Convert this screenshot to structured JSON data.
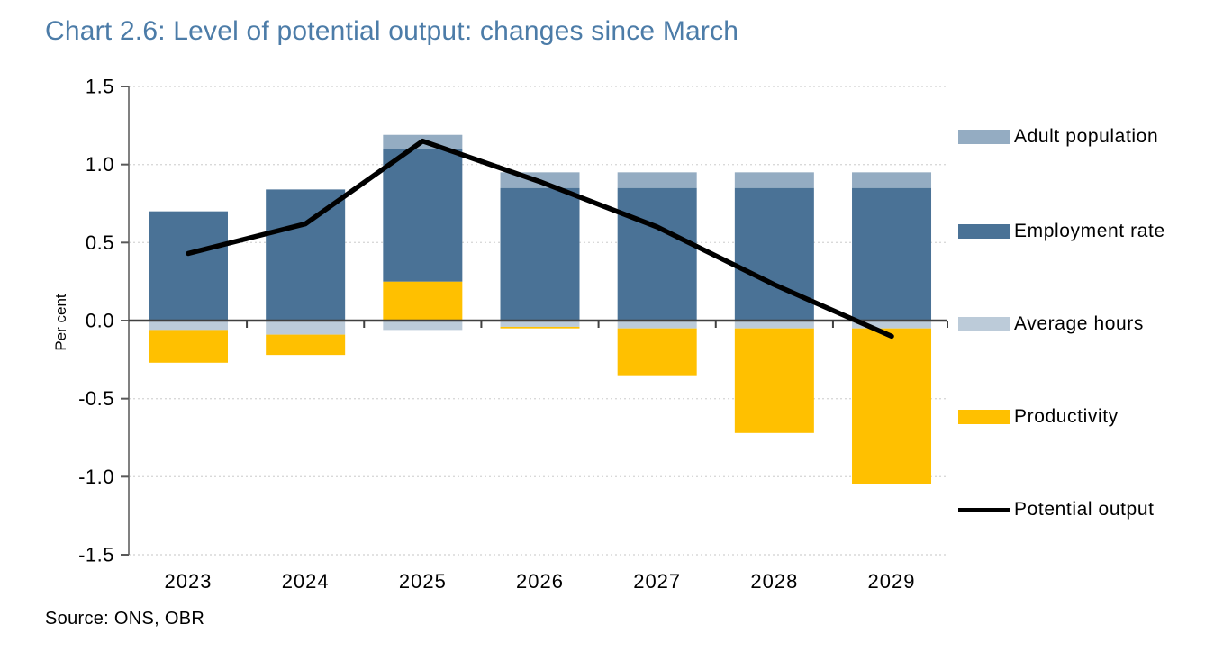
{
  "header": {
    "title": "Chart 2.6: Level of potential output: changes since March",
    "title_color": "#4C7CA8"
  },
  "chart_data": {
    "type": "bar",
    "subtype": "stacked-bars-with-line-overlay",
    "title": "Chart 2.6: Level of potential output: changes since March",
    "xlabel": "",
    "ylabel": "Per cent",
    "ylim": [
      -1.5,
      1.5
    ],
    "ytick_labels": [
      "1.5",
      "1.0",
      "0.5",
      "0.0",
      "-0.5",
      "-1.0",
      "-1.5"
    ],
    "ytick_values": [
      1.5,
      1.0,
      0.5,
      0.0,
      -0.5,
      -1.0,
      -1.5
    ],
    "grid": "dotted horizontal gridlines every 0.5; solid dark zero line with downward tick marks",
    "legend_position": "right",
    "categories": [
      "2023",
      "2024",
      "2025",
      "2026",
      "2027",
      "2028",
      "2029"
    ],
    "series": [
      {
        "name": "Adult population",
        "color": "#94ACC2",
        "values": [
          0.0,
          0.0,
          0.09,
          0.1,
          0.1,
          0.1,
          0.1
        ]
      },
      {
        "name": "Employment rate",
        "color": "#4A7296",
        "values": [
          0.7,
          0.84,
          0.85,
          0.85,
          0.85,
          0.85,
          0.85
        ]
      },
      {
        "name": "Average hours",
        "color": "#BCCBD9",
        "values": [
          -0.06,
          -0.09,
          -0.06,
          -0.04,
          -0.05,
          -0.05,
          -0.05
        ]
      },
      {
        "name": "Productivity",
        "color": "#FFC000",
        "values": [
          -0.21,
          -0.13,
          0.25,
          -0.01,
          -0.3,
          -0.67,
          -1.0
        ]
      }
    ],
    "stack_up_order": [
      "Productivity",
      "Employment rate",
      "Adult population"
    ],
    "stack_down_order": [
      "Average hours",
      "Productivity"
    ],
    "line_series": {
      "name": "Potential output",
      "color": "#000000",
      "values": [
        0.43,
        0.62,
        1.15,
        0.89,
        0.6,
        0.23,
        -0.1
      ]
    },
    "axis_colors": {
      "y_axis": "#808080",
      "zero_line": "#404040",
      "gridline": "#D9D9D9",
      "tick": "#595959",
      "text": "#000000"
    }
  },
  "footer": {
    "source": "Source: ONS, OBR"
  }
}
